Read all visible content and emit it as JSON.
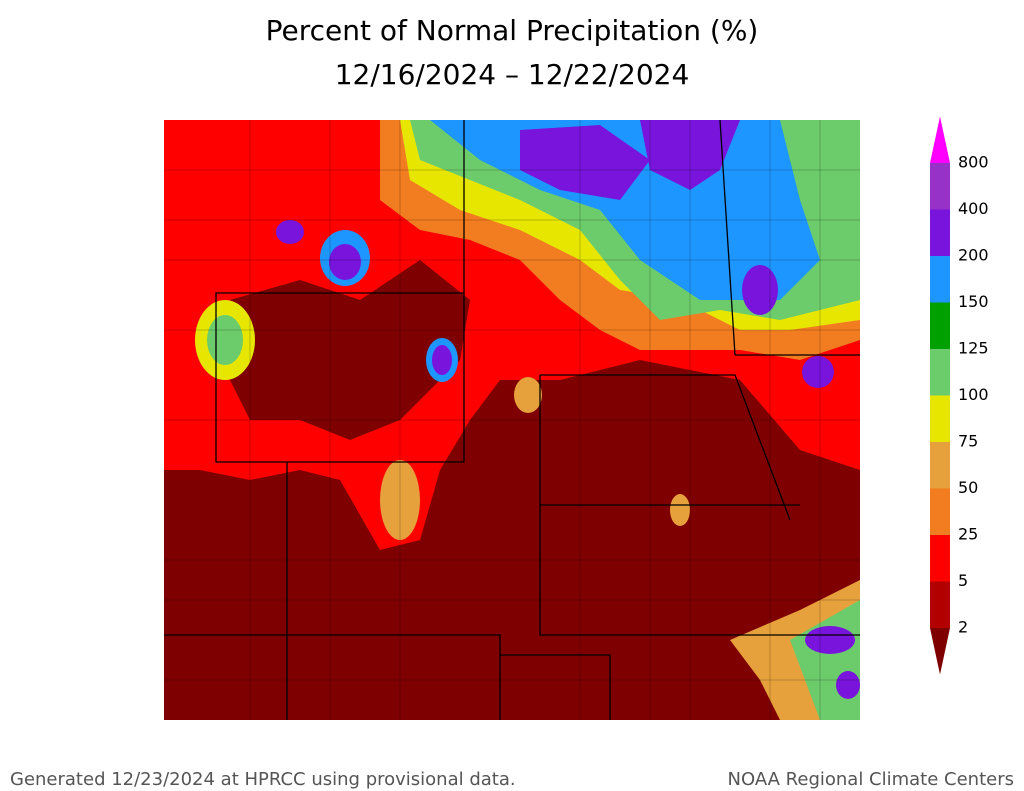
{
  "title": [
    "Percent of Normal Precipitation (%)",
    "12/16/2024 – 12/22/2024"
  ],
  "legend": {
    "labels": [
      2,
      5,
      25,
      50,
      75,
      100,
      125,
      150,
      200,
      400,
      800
    ],
    "colors": [
      "#7f0000",
      "#b20000",
      "#ff0000",
      "#f27c20",
      "#e6a03c",
      "#e6e600",
      "#6ccc6c",
      "#00a000",
      "#1e96ff",
      "#7814dc",
      "#9632c8",
      "#ff00ff"
    ]
  },
  "footer": {
    "left": "Generated 12/23/2024 at HPRCC using provisional data.",
    "right": "NOAA Regional Climate Centers"
  }
}
